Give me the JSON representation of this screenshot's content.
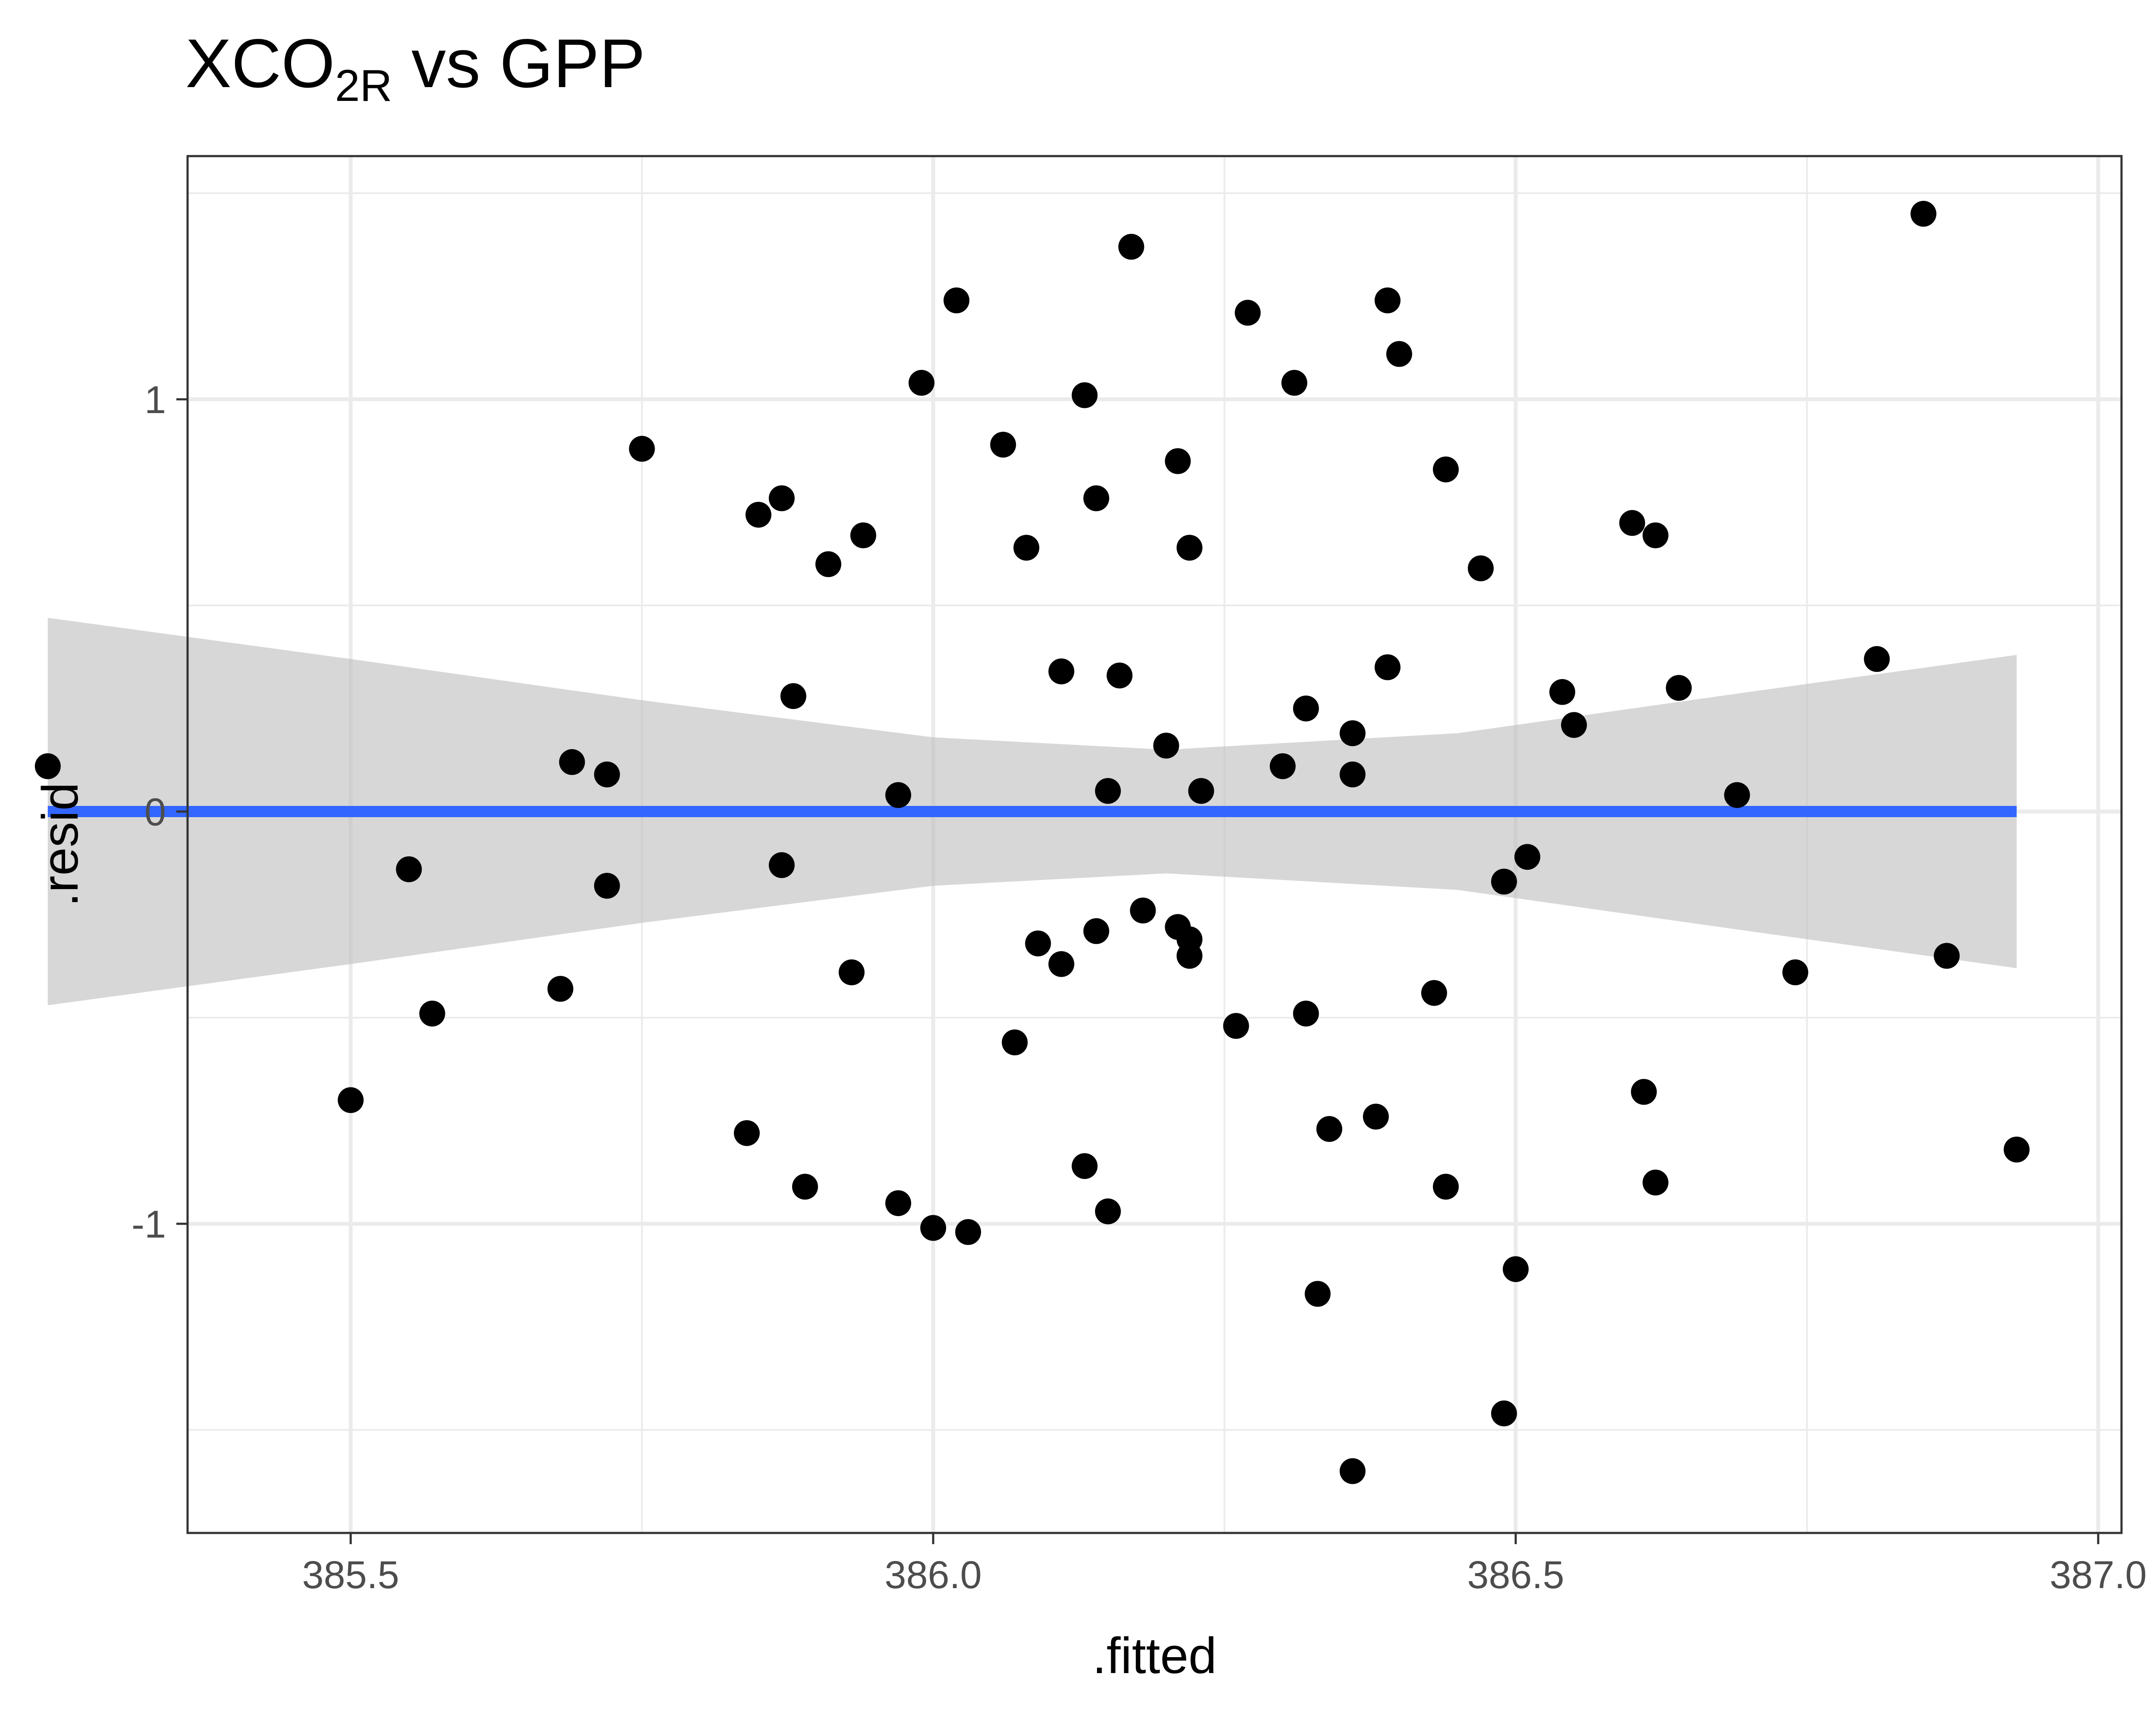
{
  "chart_data": {
    "type": "scatter",
    "title_main": "XCO",
    "title_subscript": "2R",
    "title_rest": " vs GPP",
    "xlabel": ".fitted",
    "ylabel": ".resid",
    "xlim": [
      385.36,
      387.02
    ],
    "ylim": [
      -1.75,
      1.59
    ],
    "x_ticks": [
      385.5,
      386.0,
      386.5,
      387.0
    ],
    "x_tick_labels": [
      "385.5",
      "386.0",
      "386.5",
      "387.0"
    ],
    "y_ticks": [
      -1,
      0,
      1
    ],
    "y_tick_labels": [
      "-1",
      "0",
      "1"
    ],
    "grid": true,
    "theme": "bw",
    "colors": {
      "points": "#000000",
      "smooth_line": "#3366FF",
      "ribbon": "#BDBDBD",
      "grid": "#EBEBEB",
      "panel_border": "#333333"
    },
    "smooth": {
      "method": "linear",
      "x": [
        385.24,
        386.93
      ],
      "y": [
        0.0,
        0.0
      ],
      "ribbon": {
        "x": [
          385.24,
          385.5,
          385.75,
          386.0,
          386.2,
          386.45,
          386.7,
          386.93
        ],
        "lower": [
          -0.47,
          -0.37,
          -0.27,
          -0.18,
          -0.15,
          -0.19,
          -0.29,
          -0.38
        ],
        "upper": [
          0.47,
          0.37,
          0.27,
          0.18,
          0.15,
          0.19,
          0.29,
          0.38
        ]
      }
    },
    "series": [
      {
        "x": [
          385.24,
          385.5,
          385.55,
          385.57,
          385.68,
          385.69,
          385.72,
          385.72,
          385.75,
          385.84,
          385.85,
          385.87,
          385.87,
          385.88,
          385.89,
          385.91,
          385.93,
          385.94,
          385.97,
          385.97,
          385.99,
          386.0,
          386.02,
          386.03,
          386.06,
          386.07,
          386.08,
          386.09,
          386.11,
          386.11,
          386.13,
          386.13,
          386.14,
          386.14,
          386.15,
          386.15,
          386.16,
          386.17,
          386.18,
          386.2,
          386.21,
          386.21,
          386.22,
          386.22,
          386.22,
          386.23,
          386.26,
          386.27,
          386.3,
          386.31,
          386.32,
          386.32,
          386.33,
          386.34,
          386.36,
          386.36,
          386.36,
          386.38,
          386.39,
          386.39,
          386.4,
          386.43,
          386.44,
          386.44,
          386.47,
          386.49,
          386.49,
          386.5,
          386.51,
          386.54,
          386.55,
          386.6,
          386.61,
          386.62,
          386.62,
          386.64,
          386.69,
          386.74,
          386.81,
          386.85,
          386.87,
          386.93
        ],
        "y": [
          0.11,
          -0.7,
          -0.14,
          -0.49,
          -0.43,
          0.12,
          0.09,
          -0.18,
          0.88,
          -0.78,
          0.72,
          0.76,
          -0.13,
          0.28,
          -0.91,
          0.6,
          -0.39,
          0.67,
          0.04,
          -0.95,
          1.04,
          -1.01,
          1.24,
          -1.02,
          0.89,
          -0.56,
          0.64,
          -0.32,
          -0.37,
          0.34,
          1.01,
          -0.86,
          0.76,
          -0.29,
          0.05,
          -0.97,
          0.33,
          1.37,
          -0.24,
          0.16,
          0.85,
          -0.28,
          0.64,
          -0.31,
          -0.35,
          0.05,
          -0.52,
          1.21,
          0.11,
          1.04,
          0.25,
          -0.49,
          -1.17,
          -0.77,
          0.19,
          0.09,
          -1.6,
          -0.74,
          0.35,
          1.24,
          1.11,
          -0.44,
          0.83,
          -0.91,
          0.59,
          -0.17,
          -1.46,
          -1.11,
          -0.11,
          0.29,
          0.21,
          0.7,
          -0.68,
          0.67,
          -0.9,
          0.3,
          0.04,
          -0.39,
          0.37,
          1.45,
          -0.35,
          -0.82
        ]
      }
    ]
  }
}
